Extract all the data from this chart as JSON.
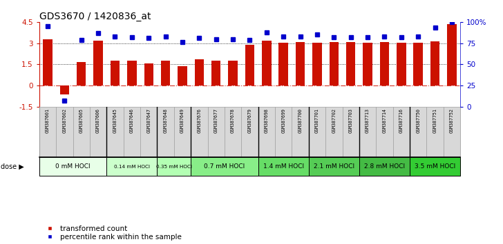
{
  "title": "GDS3670 / 1420836_at",
  "samples": [
    "GSM387601",
    "GSM387602",
    "GSM387605",
    "GSM387606",
    "GSM387645",
    "GSM387646",
    "GSM387647",
    "GSM387648",
    "GSM387649",
    "GSM387676",
    "GSM387677",
    "GSM387678",
    "GSM387679",
    "GSM387698",
    "GSM387699",
    "GSM387700",
    "GSM387701",
    "GSM387702",
    "GSM387703",
    "GSM387713",
    "GSM387714",
    "GSM387716",
    "GSM387750",
    "GSM387751",
    "GSM387752"
  ],
  "bar_values": [
    3.3,
    -0.6,
    1.65,
    3.2,
    1.75,
    1.75,
    1.55,
    1.75,
    1.4,
    1.85,
    1.78,
    1.78,
    2.9,
    3.2,
    3.05,
    3.1,
    3.05,
    3.1,
    3.1,
    3.05,
    3.1,
    3.05,
    3.05,
    3.15,
    4.35
  ],
  "percentile_values": [
    95,
    7,
    79,
    87,
    83,
    82,
    81,
    83,
    76,
    81,
    80,
    80,
    79,
    88,
    83,
    83,
    85,
    82,
    82,
    82,
    83,
    82,
    83,
    93,
    100
  ],
  "dose_groups": [
    {
      "label": "0 mM HOCl",
      "start": 0,
      "end": 4,
      "color": "#e8ffe8"
    },
    {
      "label": "0.14 mM HOCl",
      "start": 4,
      "end": 7,
      "color": "#ccffcc"
    },
    {
      "label": "0.35 mM HOCl",
      "start": 7,
      "end": 9,
      "color": "#b3ffb3"
    },
    {
      "label": "0.7 mM HOCl",
      "start": 9,
      "end": 13,
      "color": "#88ee88"
    },
    {
      "label": "1.4 mM HOCl",
      "start": 13,
      "end": 16,
      "color": "#66dd66"
    },
    {
      "label": "2.1 mM HOCl",
      "start": 16,
      "end": 19,
      "color": "#55cc55"
    },
    {
      "label": "2.8 mM HOCl",
      "start": 19,
      "end": 22,
      "color": "#44bb44"
    },
    {
      "label": "3.5 mM HOCl",
      "start": 22,
      "end": 25,
      "color": "#33cc33"
    }
  ],
  "bar_color": "#cc1100",
  "percentile_color": "#0000cc",
  "ylim_left": [
    -1.5,
    4.5
  ],
  "ylim_right": [
    0,
    100
  ],
  "yticks_left": [
    -1.5,
    0.0,
    1.5,
    3.0,
    4.5
  ],
  "ytick_labels_left": [
    "-1.5",
    "0",
    "1.5",
    "3",
    "4.5"
  ],
  "yticks_right": [
    0,
    25,
    50,
    75,
    100
  ],
  "ytick_labels_right": [
    "0",
    "25",
    "50",
    "75",
    "100%"
  ],
  "background_color": "#ffffff",
  "xlab_bg": "#d4d4d4",
  "legend_bar": "transformed count",
  "legend_pct": "percentile rank within the sample",
  "dose_label": "dose ▶"
}
